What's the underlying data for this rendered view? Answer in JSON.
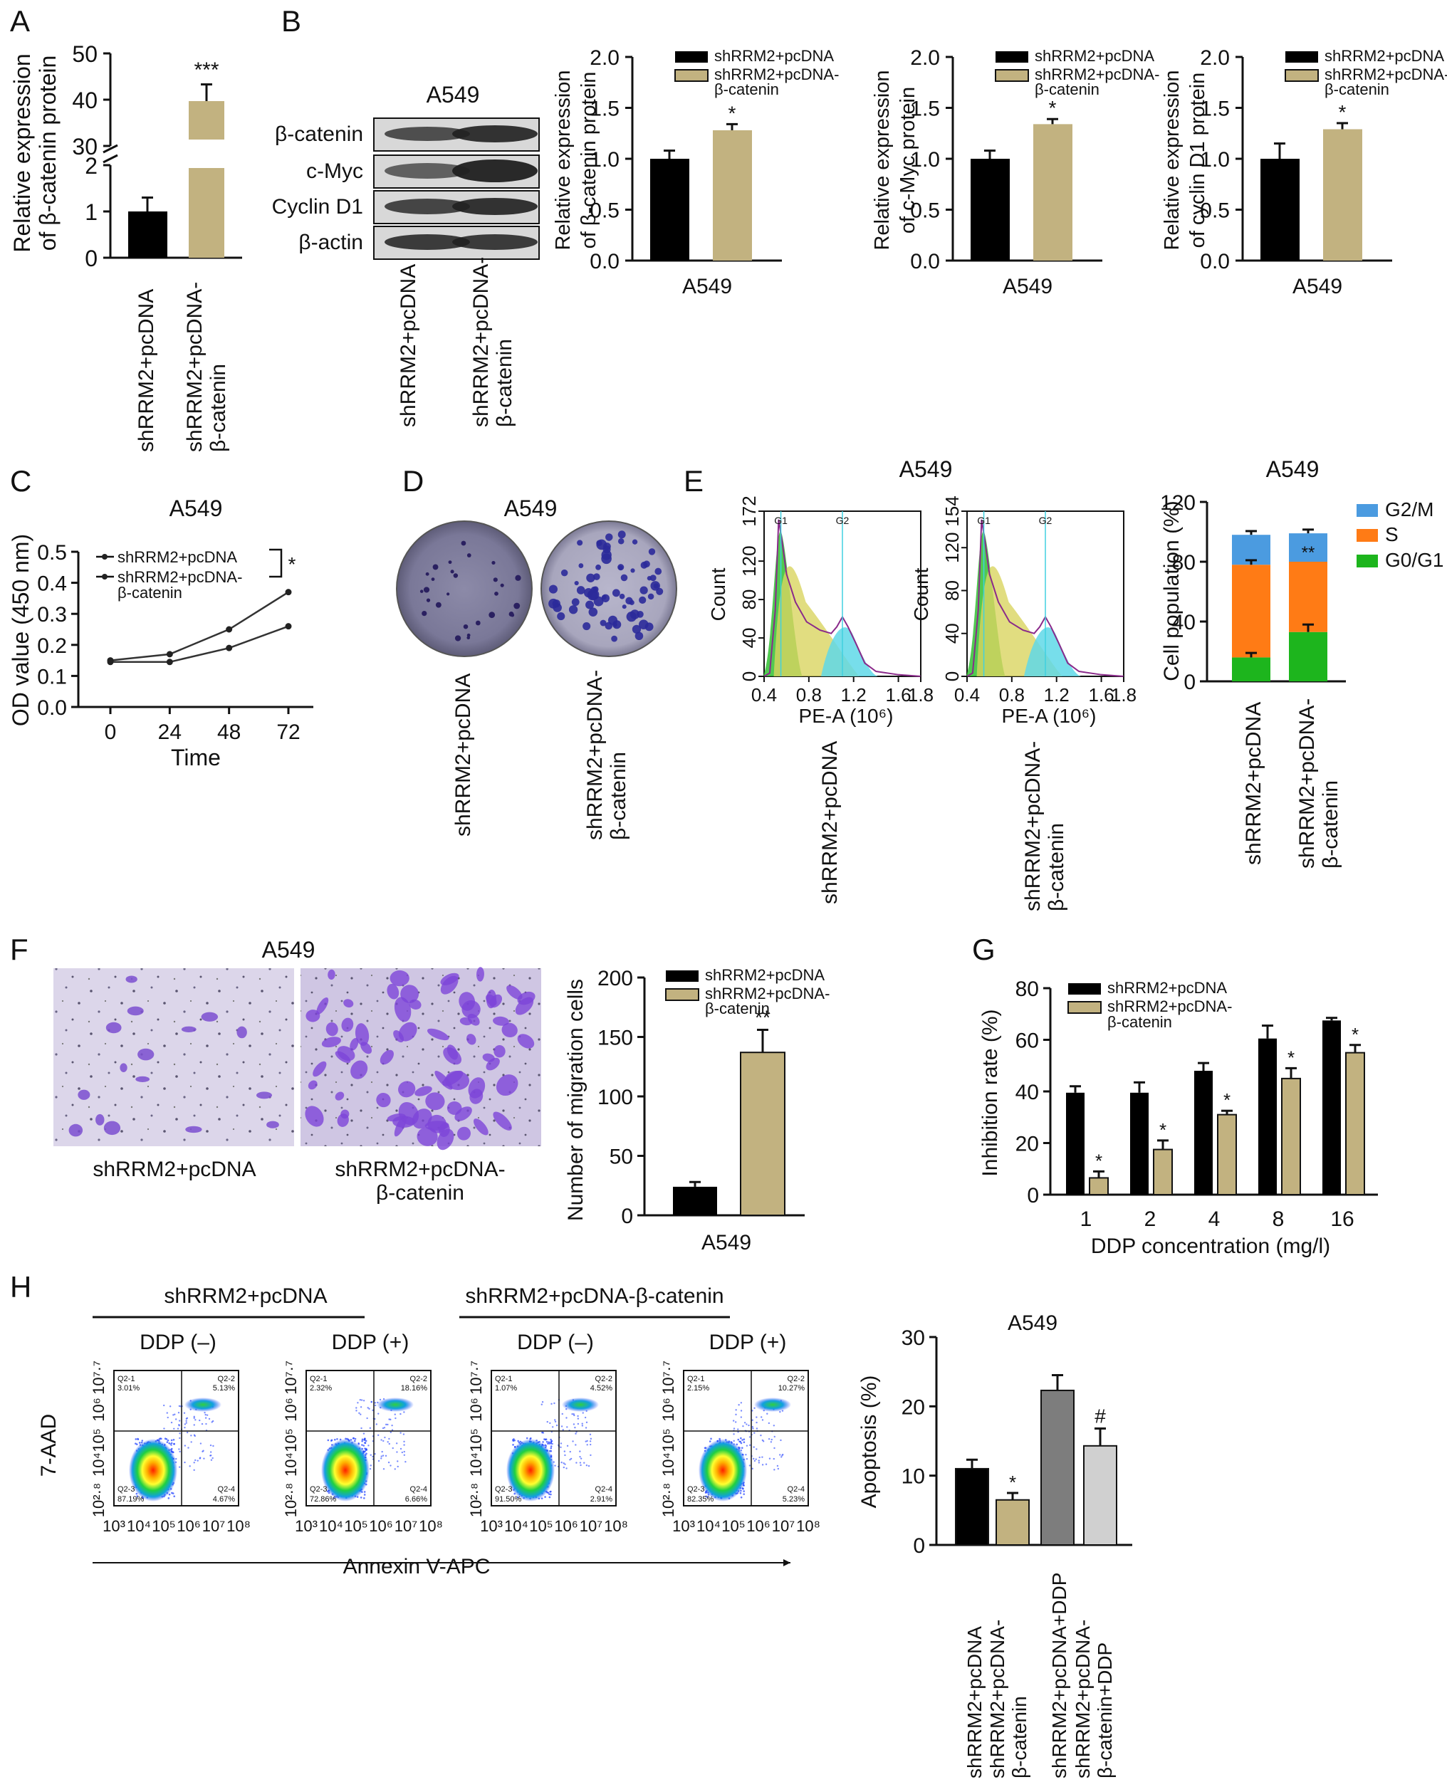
{
  "panels": {
    "A": {
      "letter": "A",
      "ylabel": [
        "Relative expression",
        "of β-catenin protein"
      ],
      "ticks_low": [
        "0",
        "1",
        "2"
      ],
      "ticks_high": [
        "30",
        "40",
        "50"
      ],
      "sig": "***",
      "categories": [
        "shRRM2+pcDNA",
        "shRRM2+pcDNA-\nβ-catenin"
      ],
      "chart_data": {
        "type": "bar",
        "categories": [
          "shRRM2+pcDNA",
          "shRRM2+pcDNA-β-catenin"
        ],
        "values": [
          1.0,
          40.0
        ],
        "errors": [
          0.3,
          3.3
        ],
        "ylabel": "Relative expression of β-catenin protein",
        "axis_break": [
          2,
          30
        ]
      }
    },
    "B": {
      "letter": "B",
      "blot_title": "A549",
      "blot_labels": [
        "β-catenin",
        "c-Myc",
        "Cyclin D1",
        "β-actin"
      ],
      "lane_labels": [
        "shRRM2+pcDNA",
        "shRRM2+pcDNA-\nβ-catenin"
      ],
      "legend": [
        "shRRM2+pcDNA",
        "shRRM2+pcDNA-",
        "β-catenin"
      ],
      "xlabel": "A549",
      "yticks": [
        "0.0",
        "0.5",
        "1.0",
        "1.5",
        "2.0"
      ],
      "sig": "*",
      "charts": [
        {
          "type": "bar",
          "ylabel": [
            "Relative expression",
            "of β-catenin protein"
          ],
          "series": [
            {
              "name": "shRRM2+pcDNA",
              "value": 1.0,
              "error": 0.08
            },
            {
              "name": "shRRM2+pcDNA-β-catenin",
              "value": 1.28,
              "error": 0.06
            }
          ],
          "ylim": [
            0,
            2.0
          ]
        },
        {
          "type": "bar",
          "ylabel": [
            "Relative expression",
            "of c-Myc protein"
          ],
          "series": [
            {
              "name": "shRRM2+pcDNA",
              "value": 1.0,
              "error": 0.08
            },
            {
              "name": "shRRM2+pcDNA-β-catenin",
              "value": 1.34,
              "error": 0.05
            }
          ],
          "ylim": [
            0,
            2.0
          ]
        },
        {
          "type": "bar",
          "ylabel": [
            "Relative expression",
            "of cyclin D1 protein"
          ],
          "series": [
            {
              "name": "shRRM2+pcDNA",
              "value": 1.0,
              "error": 0.15
            },
            {
              "name": "shRRM2+pcDNA-β-catenin",
              "value": 1.29,
              "error": 0.06
            }
          ],
          "ylim": [
            0,
            2.0
          ]
        }
      ]
    },
    "C": {
      "letter": "C",
      "title": "A549",
      "xlabel": "Time",
      "ylabel": "OD value (450 nm)",
      "legend": [
        "shRRM2+pcDNA",
        "shRRM2+pcDNA-",
        "β-catenin"
      ],
      "sig": "*",
      "yticks": [
        "0.0",
        "0.1",
        "0.2",
        "0.3",
        "0.4",
        "0.5"
      ],
      "chart_data": {
        "type": "line",
        "x": [
          0,
          24,
          48,
          72
        ],
        "series": [
          {
            "name": "shRRM2+pcDNA",
            "values": [
              0.15,
              0.17,
              0.25,
              0.37
            ]
          },
          {
            "name": "shRRM2+pcDNA-β-catenin",
            "values": [
              0.145,
              0.145,
              0.19,
              0.26
            ]
          }
        ],
        "ylim": [
          0,
          0.5
        ],
        "xlabel": "Time",
        "ylabel": "OD value (450 nm)"
      }
    },
    "D": {
      "letter": "D",
      "title": "A549",
      "labels": [
        "shRRM2+pcDNA",
        "shRRM2+pcDNA-\nβ-catenin"
      ]
    },
    "E": {
      "letter": "E",
      "title": "A549",
      "title2": "A549",
      "hist": [
        {
          "yticks": [
            "0",
            "40",
            "80",
            "120",
            "172"
          ],
          "ymax": 172
        },
        {
          "yticks": [
            "0",
            "40",
            "80",
            "120",
            "154"
          ],
          "ymax": 154
        }
      ],
      "hist_ylabel": "Count",
      "hist_xlabel": "PE-A (10⁶)",
      "hist_xticks": [
        "0.4",
        "0.8",
        "1.2",
        "1.6",
        "1.8"
      ],
      "gate_labels": [
        "G1",
        "G2"
      ],
      "labels": [
        "shRRM2+pcDNA",
        "shRRM2+pcDNA-\nβ-catenin"
      ],
      "legend": [
        "G2/M",
        "S",
        "G0/G1"
      ],
      "colors": {
        "g2m": "#4b9be0",
        "s": "#ff7b15",
        "g0g1": "#1db51d"
      },
      "ylabel": "Cell population (%)",
      "yticks": [
        "0",
        "40",
        "80",
        "120"
      ],
      "sig": "**",
      "chart_data": {
        "type": "bar",
        "stacked": true,
        "categories": [
          "shRRM2+pcDNA",
          "shRRM2+pcDNA-β-catenin"
        ],
        "series": [
          {
            "name": "G0/G1",
            "values": [
              16,
              33
            ]
          },
          {
            "name": "S",
            "values": [
              62,
              47
            ]
          },
          {
            "name": "G2/M",
            "values": [
              20,
              19
            ]
          }
        ],
        "ylim": [
          0,
          120
        ],
        "ylabel": "Cell population (%)"
      }
    },
    "F": {
      "letter": "F",
      "title": "A549",
      "labels": [
        "shRRM2+pcDNA",
        "shRRM2+pcDNA-\nβ-catenin"
      ],
      "legend": [
        "shRRM2+pcDNA",
        "shRRM2+pcDNA-",
        "β-catenin"
      ],
      "ylabel": "Number of migration cells",
      "xlabel": "A549",
      "yticks": [
        "0",
        "50",
        "100",
        "150",
        "200"
      ],
      "sig": "**",
      "chart_data": {
        "type": "bar",
        "categories": [
          "shRRM2+pcDNA",
          "shRRM2+pcDNA-β-catenin"
        ],
        "values": [
          24,
          137
        ],
        "errors": [
          4,
          19
        ],
        "ylim": [
          0,
          200
        ],
        "ylabel": "Number of migration cells",
        "xlabel": "A549"
      }
    },
    "G": {
      "letter": "G",
      "legend": [
        "shRRM2+pcDNA",
        "shRRM2+pcDNA-",
        "β-catenin"
      ],
      "ylabel": "Inhibition rate (%)",
      "xlabel": "DDP concentration (mg/l)",
      "yticks": [
        "0",
        "20",
        "40",
        "60",
        "80"
      ],
      "sig": "*",
      "chart_data": {
        "type": "bar",
        "categories": [
          "1",
          "2",
          "4",
          "8",
          "16"
        ],
        "series": [
          {
            "name": "shRRM2+pcDNA",
            "values": [
              39.5,
              39.5,
              48,
              60.5,
              67.5
            ],
            "errors": [
              2.5,
              4,
              3,
              5,
              1
            ]
          },
          {
            "name": "shRRM2+pcDNA-β-catenin",
            "values": [
              6.5,
              17.5,
              31,
              45,
              55
            ],
            "errors": [
              2.5,
              3.5,
              1.5,
              4,
              3
            ]
          }
        ],
        "ylim": [
          0,
          80
        ],
        "xlabel": "DDP concentration (mg/l)",
        "ylabel": "Inhibition rate (%)"
      }
    },
    "H": {
      "letter": "H",
      "group1": "shRRM2+pcDNA",
      "group2": "shRRM2+pcDNA-β-catenin",
      "cond": [
        "DDP (–)",
        "DDP (+)",
        "DDP (–)",
        "DDP (+)"
      ],
      "flow_ylabel": "7-AAD",
      "flow_xlabel": "Annexin V-APC",
      "flow_yticks": [
        "10²·⁸",
        "10⁴",
        "10⁵",
        "10⁶",
        "10⁷·⁷"
      ],
      "flow_xticks": [
        "10³",
        "10⁴",
        "10⁵",
        "10⁶",
        "10⁷",
        "10⁸"
      ],
      "quadrants": [
        {
          "q1": "Q2-1",
          "v1": "3.01%",
          "q2": "Q2-2",
          "v2": "5.13%",
          "q3": "Q2-3",
          "v3": "87.19%",
          "q4": "Q2-4",
          "v4": "4.67%"
        },
        {
          "q1": "Q2-1",
          "v1": "2.32%",
          "q2": "Q2-2",
          "v2": "18.16%",
          "q3": "Q2-3",
          "v3": "72.86%",
          "q4": "Q2-4",
          "v4": "6.66%"
        },
        {
          "q1": "Q2-1",
          "v1": "1.07%",
          "q2": "Q2-2",
          "v2": "4.52%",
          "q3": "Q2-3",
          "v3": "91.50%",
          "q4": "Q2-4",
          "v4": "2.91%"
        },
        {
          "q1": "Q2-1",
          "v1": "2.15%",
          "q2": "Q2-2",
          "v2": "10.27%",
          "q3": "Q2-3",
          "v3": "82.35%",
          "q4": "Q2-4",
          "v4": "5.23%"
        }
      ],
      "title": "A549",
      "ylabel": "Apoptosis (%)",
      "yticks": [
        "0",
        "10",
        "20",
        "30"
      ],
      "sig1": "*",
      "sig2": "#",
      "categories": [
        "shRRM2+pcDNA",
        "shRRM2+pcDNA-\nβ-catenin",
        "shRRM2+pcDNA+DDP",
        "shRRM2+pcDNA-\nβ-catenin+DDP"
      ],
      "colors": [
        "#000000",
        "#c2b280",
        "#7d7d7d",
        "#d0d0d0"
      ],
      "chart_data": {
        "type": "bar",
        "categories": [
          "shRRM2+pcDNA",
          "shRRM2+pcDNA-β-catenin",
          "shRRM2+pcDNA+DDP",
          "shRRM2+pcDNA-β-catenin+DDP"
        ],
        "values": [
          11,
          6.5,
          22.3,
          14.3
        ],
        "errors": [
          1.3,
          1.0,
          2.2,
          2.5
        ],
        "ylim": [
          0,
          30
        ],
        "ylabel": "Apoptosis (%)",
        "title": "A549"
      }
    }
  },
  "colors": {
    "black_bar": "#000000",
    "tan_bar": "#c2b280"
  }
}
